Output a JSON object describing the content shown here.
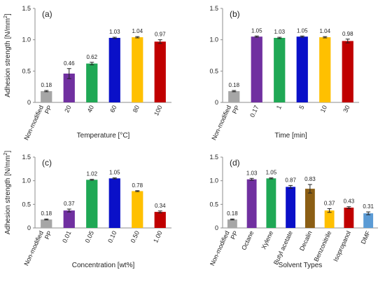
{
  "ylabel_main": "Adhesion strength [N/mm",
  "ylabel_sup": "2",
  "ylabel_close": "]",
  "colors": {
    "gray": "#a6a6a6",
    "purple": "#7030a0",
    "green": "#1fa855",
    "blue": "#0a10c8",
    "yellow": "#ffc000",
    "red": "#c00000",
    "brown": "#8b5e14",
    "lightblue": "#5b9bd5",
    "axis": "#8c8c8c",
    "error": "#222222"
  },
  "chart_data": [
    {
      "type": "bar",
      "panel_label": "(a)",
      "xlabel": "Temperature [°C]",
      "ylim": [
        0,
        1.5
      ],
      "yticks": [
        "0",
        "0.5",
        "1.0",
        "1.5"
      ],
      "categories": [
        "Non-modified PP",
        "20",
        "40",
        "60",
        "80",
        "100"
      ],
      "values": [
        0.18,
        0.46,
        0.62,
        1.03,
        1.04,
        0.97
      ],
      "value_labels": [
        "0.18",
        "0.46",
        "0.62",
        "1.03",
        "1.04",
        "0.97"
      ],
      "errors": [
        0.01,
        0.08,
        0.02,
        0.01,
        0.01,
        0.03
      ],
      "colors": [
        "gray",
        "purple",
        "green",
        "blue",
        "yellow",
        "red"
      ]
    },
    {
      "type": "bar",
      "panel_label": "(b)",
      "xlabel": "Time [min]",
      "ylim": [
        0,
        1.5
      ],
      "yticks": [
        "0",
        "0.5",
        "1.0",
        "1.5"
      ],
      "categories": [
        "Non-modified PP",
        "0.17",
        "1",
        "5",
        "10",
        "30"
      ],
      "values": [
        0.18,
        1.05,
        1.03,
        1.05,
        1.04,
        0.98
      ],
      "value_labels": [
        "0.18",
        "1.05",
        "1.03",
        "1.05",
        "1.04",
        "0.98"
      ],
      "errors": [
        0.01,
        0.01,
        0.01,
        0.01,
        0.01,
        0.03
      ],
      "colors": [
        "gray",
        "purple",
        "green",
        "blue",
        "yellow",
        "red"
      ]
    },
    {
      "type": "bar",
      "panel_label": "(c)",
      "xlabel": "Concentration [wt%]",
      "ylim": [
        0,
        1.5
      ],
      "yticks": [
        "0",
        "0.5",
        "1.0",
        "1.5"
      ],
      "categories": [
        "Non-modified PP",
        "0.01",
        "0.05",
        "0.10",
        "0.50",
        "1.00"
      ],
      "values": [
        0.18,
        0.37,
        1.02,
        1.05,
        0.78,
        0.34
      ],
      "value_labels": [
        "0.18",
        "0.37",
        "1.02",
        "1.05",
        "0.78",
        "0.34"
      ],
      "errors": [
        0.01,
        0.03,
        0.01,
        0.01,
        0.01,
        0.02
      ],
      "colors": [
        "gray",
        "purple",
        "green",
        "blue",
        "yellow",
        "red"
      ]
    },
    {
      "type": "bar",
      "panel_label": "(d)",
      "xlabel": "Solvent Types",
      "ylim": [
        0,
        1.5
      ],
      "yticks": [
        "0",
        "0.5",
        "1.0",
        "1.5"
      ],
      "categories": [
        "Non-modified PP",
        "Octane",
        "Xylene",
        "Butyl acetate",
        "Decalin",
        "Benzonitrile",
        "Isopropanol",
        "DMF"
      ],
      "values": [
        0.18,
        1.03,
        1.05,
        0.87,
        0.83,
        0.37,
        0.43,
        0.31
      ],
      "value_labels": [
        "0.18",
        "1.03",
        "1.05",
        "0.87",
        "0.83",
        "0.37",
        "0.43",
        "0.31"
      ],
      "errors": [
        0.01,
        0.02,
        0.01,
        0.03,
        0.09,
        0.04,
        0.02,
        0.03
      ],
      "colors": [
        "gray",
        "purple",
        "green",
        "blue",
        "brown",
        "yellow",
        "red",
        "lightblue"
      ]
    }
  ]
}
